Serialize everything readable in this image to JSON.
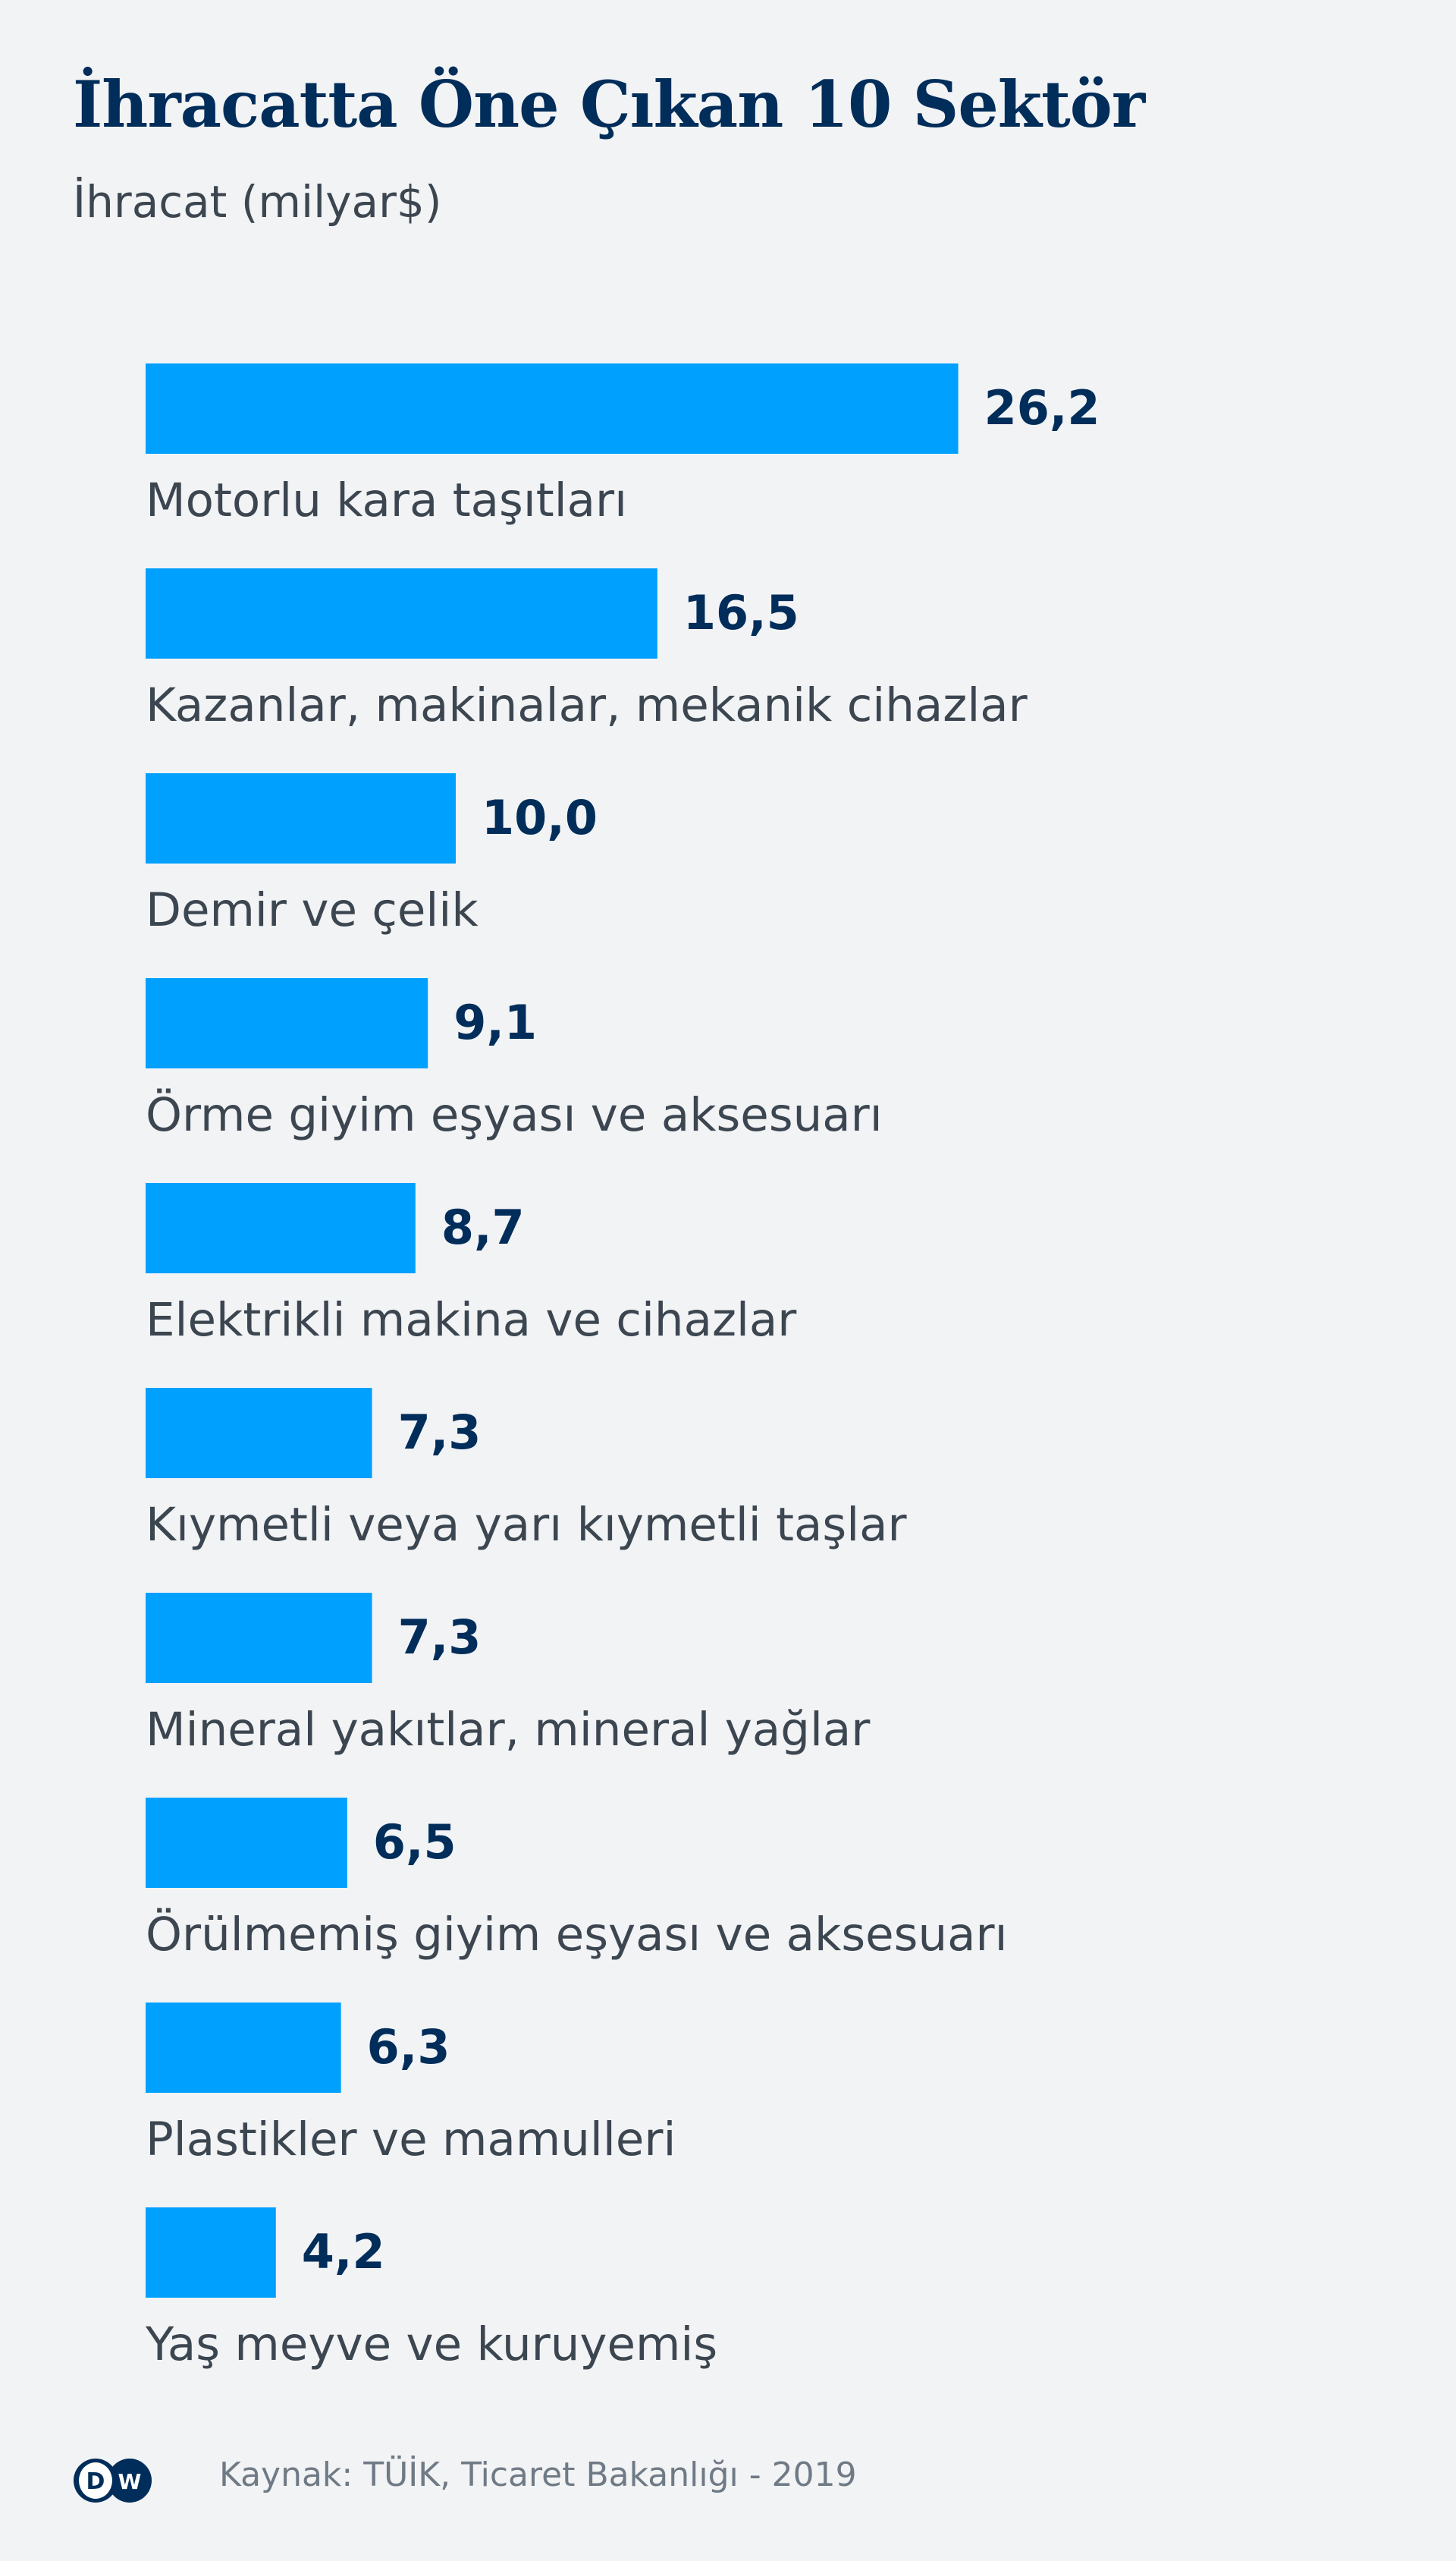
{
  "chart_data": {
    "type": "bar",
    "orientation": "horizontal",
    "title": "İhracatta Öne Çıkan 10 Sektör",
    "subtitle": "İhracat (milyar$)",
    "categories": [
      "Motorlu kara taşıtları",
      "Kazanlar, makinalar, mekanik cihazlar",
      "Demir ve çelik",
      "Örme giyim eşyası ve aksesuarı",
      "Elektrikli makina ve cihazlar",
      "Kıymetli veya yarı kıymetli taşlar",
      "Mineral yakıtlar, mineral yağlar",
      "Örülmemiş giyim eşyası ve aksesuarı",
      "Plastikler ve mamulleri",
      "Yaş meyve ve kuruyemiş"
    ],
    "values": [
      26.2,
      16.5,
      10.0,
      9.1,
      8.7,
      7.3,
      7.3,
      6.5,
      6.3,
      4.2
    ],
    "data_labels": [
      "26,2",
      "16,5",
      "10,0",
      "9,1",
      "8,7",
      "7,3",
      "7,3",
      "6,5",
      "6,3",
      "4,2"
    ],
    "grid": false,
    "legend": "none",
    "bar_color": "#00a0ff",
    "label_color": "#002d5a"
  },
  "footer": {
    "source": "Kaynak: TÜİK, Ticaret Bakanlığı - 2019",
    "logo": "DW",
    "logo_color": "#002d5a"
  }
}
